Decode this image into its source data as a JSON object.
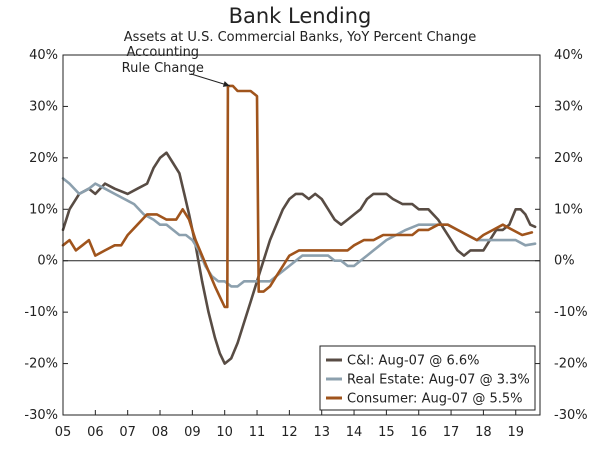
{
  "chart_data": {
    "type": "line",
    "title": "Bank Lending",
    "subtitle": "Assets at U.S. Commercial Banks, YoY Percent Change",
    "xlabel": "",
    "ylabel": "",
    "xlim": [
      2005,
      2019.75
    ],
    "ylim": [
      -30,
      40
    ],
    "x_ticks": [
      2005,
      2006,
      2007,
      2008,
      2009,
      2010,
      2011,
      2012,
      2013,
      2014,
      2015,
      2016,
      2017,
      2018,
      2019
    ],
    "x_tick_labels": [
      "05",
      "06",
      "07",
      "08",
      "09",
      "10",
      "11",
      "12",
      "13",
      "14",
      "15",
      "16",
      "17",
      "18",
      "19"
    ],
    "y_ticks": [
      -30,
      -20,
      -10,
      0,
      10,
      20,
      30,
      40
    ],
    "y_tick_labels": [
      "-30%",
      "-20%",
      "-10%",
      "0%",
      "10%",
      "20%",
      "30%",
      "40%"
    ],
    "grid": false,
    "legend_position": "bottom-right",
    "annotation": {
      "text_lines": [
        "Accounting",
        "Rule Change"
      ],
      "x": 2010.25,
      "y": 34
    },
    "series": [
      {
        "name": "C&I: Aug-07 @ 6.6%",
        "color": "#584c44",
        "points": [
          [
            2005.0,
            6
          ],
          [
            2005.2,
            10
          ],
          [
            2005.5,
            13
          ],
          [
            2005.8,
            14
          ],
          [
            2006.0,
            13
          ],
          [
            2006.3,
            15
          ],
          [
            2006.6,
            14
          ],
          [
            2007.0,
            13
          ],
          [
            2007.3,
            14
          ],
          [
            2007.6,
            15
          ],
          [
            2007.8,
            18
          ],
          [
            2008.0,
            20
          ],
          [
            2008.2,
            21
          ],
          [
            2008.4,
            19
          ],
          [
            2008.6,
            17
          ],
          [
            2008.75,
            13
          ],
          [
            2008.9,
            9
          ],
          [
            2009.1,
            3
          ],
          [
            2009.3,
            -4
          ],
          [
            2009.5,
            -10
          ],
          [
            2009.7,
            -15
          ],
          [
            2009.85,
            -18
          ],
          [
            2010.0,
            -20
          ],
          [
            2010.2,
            -19
          ],
          [
            2010.4,
            -16
          ],
          [
            2010.6,
            -12
          ],
          [
            2010.8,
            -8
          ],
          [
            2011.0,
            -4
          ],
          [
            2011.2,
            0
          ],
          [
            2011.4,
            4
          ],
          [
            2011.6,
            7
          ],
          [
            2011.8,
            10
          ],
          [
            2012.0,
            12
          ],
          [
            2012.2,
            13
          ],
          [
            2012.4,
            13
          ],
          [
            2012.6,
            12
          ],
          [
            2012.8,
            13
          ],
          [
            2013.0,
            12
          ],
          [
            2013.2,
            10
          ],
          [
            2013.4,
            8
          ],
          [
            2013.6,
            7
          ],
          [
            2013.8,
            8
          ],
          [
            2014.0,
            9
          ],
          [
            2014.2,
            10
          ],
          [
            2014.4,
            12
          ],
          [
            2014.6,
            13
          ],
          [
            2014.8,
            13
          ],
          [
            2015.0,
            13
          ],
          [
            2015.2,
            12
          ],
          [
            2015.5,
            11
          ],
          [
            2015.8,
            11
          ],
          [
            2016.0,
            10
          ],
          [
            2016.3,
            10
          ],
          [
            2016.6,
            8
          ],
          [
            2016.8,
            6
          ],
          [
            2017.0,
            4
          ],
          [
            2017.2,
            2
          ],
          [
            2017.4,
            1
          ],
          [
            2017.6,
            2
          ],
          [
            2017.8,
            2
          ],
          [
            2018.0,
            2
          ],
          [
            2018.2,
            4
          ],
          [
            2018.4,
            6
          ],
          [
            2018.6,
            6
          ],
          [
            2018.8,
            7
          ],
          [
            2019.0,
            10
          ],
          [
            2019.15,
            10
          ],
          [
            2019.3,
            9
          ],
          [
            2019.45,
            7
          ],
          [
            2019.6,
            6.6
          ]
        ]
      },
      {
        "name": "Real Estate: Aug-07 @ 3.3%",
        "color": "#8ca0ae",
        "points": [
          [
            2005.0,
            16
          ],
          [
            2005.2,
            15
          ],
          [
            2005.5,
            13
          ],
          [
            2005.8,
            14
          ],
          [
            2006.0,
            15
          ],
          [
            2006.3,
            14
          ],
          [
            2006.6,
            13
          ],
          [
            2006.9,
            12
          ],
          [
            2007.2,
            11
          ],
          [
            2007.5,
            9
          ],
          [
            2007.8,
            8
          ],
          [
            2008.0,
            7
          ],
          [
            2008.2,
            7
          ],
          [
            2008.4,
            6
          ],
          [
            2008.6,
            5
          ],
          [
            2008.8,
            5
          ],
          [
            2009.0,
            4
          ],
          [
            2009.2,
            2
          ],
          [
            2009.4,
            -1
          ],
          [
            2009.6,
            -3
          ],
          [
            2009.8,
            -4
          ],
          [
            2010.0,
            -4
          ],
          [
            2010.2,
            -5
          ],
          [
            2010.4,
            -5
          ],
          [
            2010.6,
            -4
          ],
          [
            2010.8,
            -4
          ],
          [
            2011.0,
            -4
          ],
          [
            2011.2,
            -4
          ],
          [
            2011.4,
            -4
          ],
          [
            2011.6,
            -3
          ],
          [
            2011.8,
            -2
          ],
          [
            2012.0,
            -1
          ],
          [
            2012.2,
            0
          ],
          [
            2012.4,
            1
          ],
          [
            2012.6,
            1
          ],
          [
            2012.8,
            1
          ],
          [
            2013.0,
            1
          ],
          [
            2013.2,
            1
          ],
          [
            2013.4,
            0
          ],
          [
            2013.6,
            0
          ],
          [
            2013.8,
            -1
          ],
          [
            2014.0,
            -1
          ],
          [
            2014.2,
            0
          ],
          [
            2014.4,
            1
          ],
          [
            2014.6,
            2
          ],
          [
            2014.8,
            3
          ],
          [
            2015.0,
            4
          ],
          [
            2015.3,
            5
          ],
          [
            2015.6,
            6
          ],
          [
            2016.0,
            7
          ],
          [
            2016.3,
            7
          ],
          [
            2016.6,
            7
          ],
          [
            2016.9,
            7
          ],
          [
            2017.2,
            6
          ],
          [
            2017.5,
            5
          ],
          [
            2017.8,
            4
          ],
          [
            2018.0,
            4
          ],
          [
            2018.3,
            4
          ],
          [
            2018.6,
            4
          ],
          [
            2019.0,
            4
          ],
          [
            2019.3,
            3
          ],
          [
            2019.6,
            3.3
          ]
        ]
      },
      {
        "name": "Consumer: Aug-07 @ 5.5%",
        "color": "#a0541c",
        "points": [
          [
            2005.0,
            3
          ],
          [
            2005.2,
            4
          ],
          [
            2005.4,
            2
          ],
          [
            2005.6,
            3
          ],
          [
            2005.8,
            4
          ],
          [
            2006.0,
            1
          ],
          [
            2006.3,
            2
          ],
          [
            2006.6,
            3
          ],
          [
            2006.8,
            3
          ],
          [
            2007.0,
            5
          ],
          [
            2007.3,
            7
          ],
          [
            2007.6,
            9
          ],
          [
            2007.9,
            9
          ],
          [
            2008.2,
            8
          ],
          [
            2008.5,
            8
          ],
          [
            2008.7,
            10
          ],
          [
            2008.9,
            8
          ],
          [
            2009.1,
            4
          ],
          [
            2009.3,
            1
          ],
          [
            2009.5,
            -2
          ],
          [
            2009.7,
            -5
          ],
          [
            2009.85,
            -7
          ],
          [
            2010.0,
            -9
          ],
          [
            2010.08,
            -9
          ],
          [
            2010.1,
            34
          ],
          [
            2010.25,
            34
          ],
          [
            2010.4,
            33
          ],
          [
            2010.6,
            33
          ],
          [
            2010.8,
            33
          ],
          [
            2011.0,
            32
          ],
          [
            2011.05,
            -6
          ],
          [
            2011.2,
            -6
          ],
          [
            2011.4,
            -5
          ],
          [
            2011.6,
            -3
          ],
          [
            2011.8,
            -1
          ],
          [
            2012.0,
            1
          ],
          [
            2012.3,
            2
          ],
          [
            2012.6,
            2
          ],
          [
            2012.9,
            2
          ],
          [
            2013.2,
            2
          ],
          [
            2013.5,
            2
          ],
          [
            2013.8,
            2
          ],
          [
            2014.0,
            3
          ],
          [
            2014.3,
            4
          ],
          [
            2014.6,
            4
          ],
          [
            2014.9,
            5
          ],
          [
            2015.2,
            5
          ],
          [
            2015.5,
            5
          ],
          [
            2015.8,
            5
          ],
          [
            2016.0,
            6
          ],
          [
            2016.3,
            6
          ],
          [
            2016.6,
            7
          ],
          [
            2016.9,
            7
          ],
          [
            2017.2,
            6
          ],
          [
            2017.5,
            5
          ],
          [
            2017.8,
            4
          ],
          [
            2018.0,
            5
          ],
          [
            2018.3,
            6
          ],
          [
            2018.6,
            7
          ],
          [
            2018.9,
            6
          ],
          [
            2019.2,
            5
          ],
          [
            2019.5,
            5.5
          ]
        ]
      }
    ]
  }
}
